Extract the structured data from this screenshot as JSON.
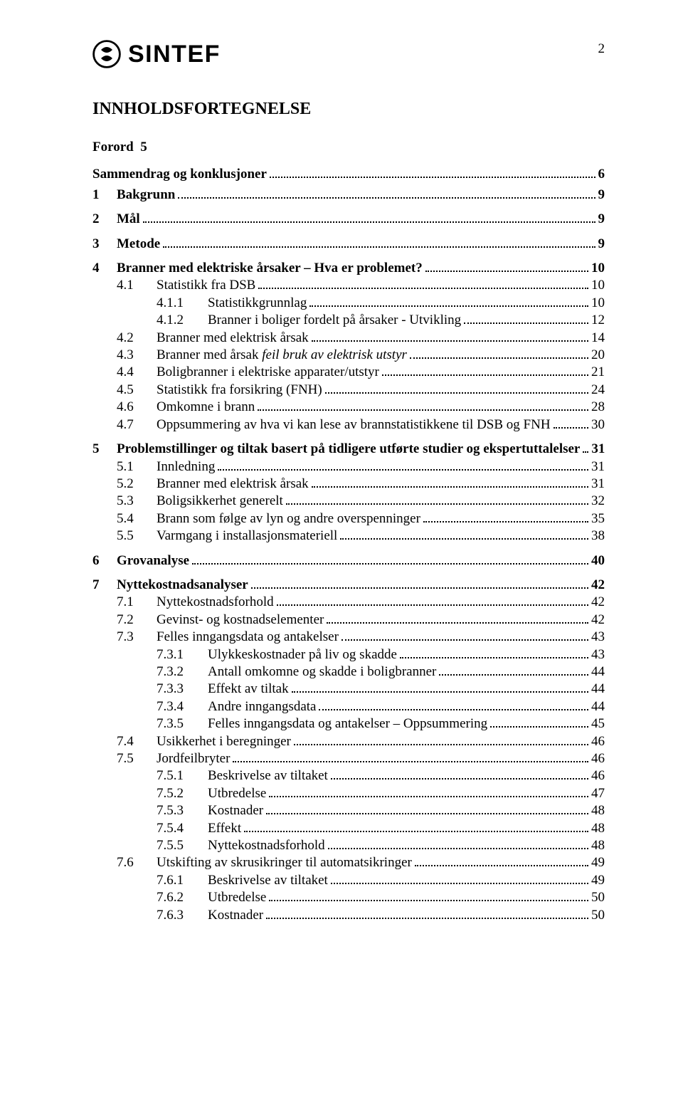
{
  "colors": {
    "text": "#000000",
    "background": "#ffffff"
  },
  "page_number": "2",
  "logo": {
    "word": "SINTEF",
    "mark_name": "sintef-logo-icon"
  },
  "title": "INNHOLDSFORTEGNELSE",
  "front_matter": [
    {
      "label": "Forord",
      "page": "5"
    },
    {
      "label": "Sammendrag og konklusjoner",
      "page": "6",
      "leader": true
    }
  ],
  "toc": [
    {
      "type": "entry",
      "level": 0,
      "bold": true,
      "num": "1",
      "text": "Bakgrunn",
      "page": "9"
    },
    {
      "type": "gap"
    },
    {
      "type": "entry",
      "level": 0,
      "bold": true,
      "num": "2",
      "text": "Mål",
      "page": "9"
    },
    {
      "type": "gap"
    },
    {
      "type": "entry",
      "level": 0,
      "bold": true,
      "num": "3",
      "text": "Metode",
      "page": "9"
    },
    {
      "type": "gap"
    },
    {
      "type": "entry",
      "level": 0,
      "bold": true,
      "num": "4",
      "text": "Branner med elektriske årsaker – Hva er problemet?",
      "page": "10"
    },
    {
      "type": "entry",
      "level": 1,
      "num": "4.1",
      "text": "Statistikk fra DSB",
      "page": "10"
    },
    {
      "type": "entry",
      "level": 2,
      "num": "4.1.1",
      "text": "Statistikkgrunnlag",
      "page": "10"
    },
    {
      "type": "entry",
      "level": 2,
      "num": "4.1.2",
      "text": "Branner i boliger fordelt på årsaker - Utvikling",
      "page": "12"
    },
    {
      "type": "entry",
      "level": 1,
      "num": "4.2",
      "text": "Branner med elektrisk årsak",
      "page": "14"
    },
    {
      "type": "entry",
      "level": 1,
      "num": "4.3",
      "text": "Branner med årsak feil bruk av elektrisk utstyr",
      "page": "20",
      "italic_part": "feil bruk av elektrisk utstyr"
    },
    {
      "type": "entry",
      "level": 1,
      "num": "4.4",
      "text": "Boligbranner i elektriske apparater/utstyr",
      "page": "21"
    },
    {
      "type": "entry",
      "level": 1,
      "num": "4.5",
      "text": "Statistikk fra forsikring (FNH)",
      "page": "24"
    },
    {
      "type": "entry",
      "level": 1,
      "num": "4.6",
      "text": "Omkomne i brann",
      "page": "28"
    },
    {
      "type": "entry",
      "level": 1,
      "num": "4.7",
      "text": "Oppsummering av hva vi kan lese av brannstatistikkene til DSB og FNH",
      "page": "30"
    },
    {
      "type": "gap"
    },
    {
      "type": "entry",
      "level": 0,
      "bold": true,
      "num": "5",
      "text": "Problemstillinger og tiltak basert på tidligere utførte studier og ekspertuttalelser",
      "page": "31"
    },
    {
      "type": "entry",
      "level": 1,
      "num": "5.1",
      "text": "Innledning",
      "page": "31"
    },
    {
      "type": "entry",
      "level": 1,
      "num": "5.2",
      "text": "Branner med elektrisk årsak",
      "page": "31"
    },
    {
      "type": "entry",
      "level": 1,
      "num": "5.3",
      "text": "Boligsikkerhet generelt",
      "page": "32"
    },
    {
      "type": "entry",
      "level": 1,
      "num": "5.4",
      "text": "Brann som følge av lyn og andre overspenninger",
      "page": "35"
    },
    {
      "type": "entry",
      "level": 1,
      "num": "5.5",
      "text": "Varmgang i installasjonsmateriell",
      "page": "38"
    },
    {
      "type": "gap"
    },
    {
      "type": "entry",
      "level": 0,
      "bold": true,
      "num": "6",
      "text": "Grovanalyse",
      "page": "40"
    },
    {
      "type": "gap"
    },
    {
      "type": "entry",
      "level": 0,
      "bold": true,
      "num": "7",
      "text": "Nyttekostnadsanalyser",
      "page": "42"
    },
    {
      "type": "entry",
      "level": 1,
      "num": "7.1",
      "text": "Nyttekostnadsforhold",
      "page": "42"
    },
    {
      "type": "entry",
      "level": 1,
      "num": "7.2",
      "text": "Gevinst- og kostnadselementer",
      "page": "42"
    },
    {
      "type": "entry",
      "level": 1,
      "num": "7.3",
      "text": "Felles inngangsdata og antakelser",
      "page": "43"
    },
    {
      "type": "entry",
      "level": 2,
      "num": "7.3.1",
      "text": "Ulykkeskostnader på liv og skadde",
      "page": "43"
    },
    {
      "type": "entry",
      "level": 2,
      "num": "7.3.2",
      "text": "Antall omkomne og skadde i boligbranner",
      "page": "44"
    },
    {
      "type": "entry",
      "level": 2,
      "num": "7.3.3",
      "text": "Effekt av tiltak",
      "page": "44"
    },
    {
      "type": "entry",
      "level": 2,
      "num": "7.3.4",
      "text": "Andre inngangsdata",
      "page": "44"
    },
    {
      "type": "entry",
      "level": 2,
      "num": "7.3.5",
      "text": "Felles inngangsdata og antakelser – Oppsummering",
      "page": "45"
    },
    {
      "type": "entry",
      "level": 1,
      "num": "7.4",
      "text": "Usikkerhet i beregninger",
      "page": "46"
    },
    {
      "type": "entry",
      "level": 1,
      "num": "7.5",
      "text": "Jordfeilbryter",
      "page": "46"
    },
    {
      "type": "entry",
      "level": 2,
      "num": "7.5.1",
      "text": "Beskrivelse av tiltaket",
      "page": "46"
    },
    {
      "type": "entry",
      "level": 2,
      "num": "7.5.2",
      "text": "Utbredelse",
      "page": "47"
    },
    {
      "type": "entry",
      "level": 2,
      "num": "7.5.3",
      "text": "Kostnader",
      "page": "48"
    },
    {
      "type": "entry",
      "level": 2,
      "num": "7.5.4",
      "text": "Effekt",
      "page": "48"
    },
    {
      "type": "entry",
      "level": 2,
      "num": "7.5.5",
      "text": "Nyttekostnadsforhold",
      "page": "48"
    },
    {
      "type": "entry",
      "level": 1,
      "num": "7.6",
      "text": "Utskifting av skrusikringer til automatsikringer",
      "page": "49"
    },
    {
      "type": "entry",
      "level": 2,
      "num": "7.6.1",
      "text": "Beskrivelse av tiltaket",
      "page": "49"
    },
    {
      "type": "entry",
      "level": 2,
      "num": "7.6.2",
      "text": "Utbredelse",
      "page": "50"
    },
    {
      "type": "entry",
      "level": 2,
      "num": "7.6.3",
      "text": "Kostnader",
      "page": "50"
    }
  ],
  "typography": {
    "title_fontsize_pt": 18,
    "body_fontsize_pt": 14,
    "font_family": "Times New Roman"
  }
}
